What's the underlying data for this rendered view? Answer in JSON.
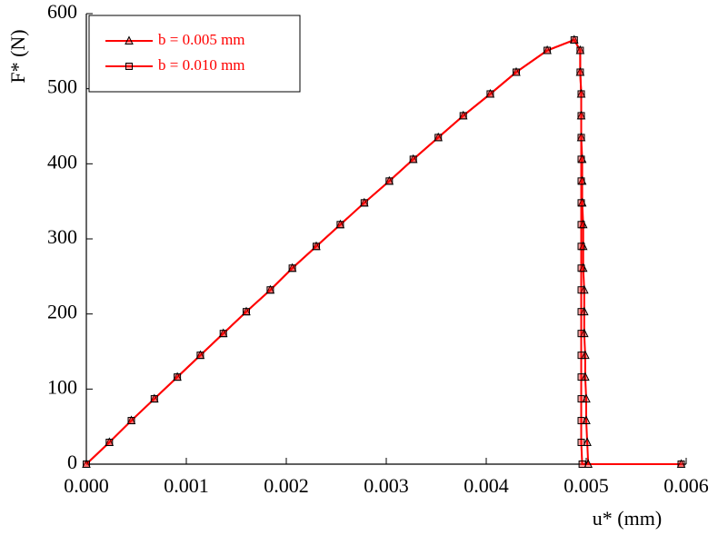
{
  "chart_data": {
    "type": "line",
    "xlabel": "u* (mm)",
    "ylabel": "F* (N)",
    "xlim": [
      0,
      0.006
    ],
    "ylim": [
      0,
      600
    ],
    "xticks": [
      {
        "value": 0,
        "label": "0.000"
      },
      0.001,
      0.002,
      0.003,
      0.004,
      0.005,
      0.006
    ],
    "yticks": [
      0,
      100,
      200,
      300,
      400,
      500,
      600
    ],
    "legend": "upper left",
    "series": [
      {
        "name": "b = 0.005 mm",
        "color": "#ff0000",
        "marker": "triangle",
        "x": [
          0,
          0.00023,
          0.00045,
          0.00068,
          0.00091,
          0.00114,
          0.00137,
          0.0016,
          0.00184,
          0.00206,
          0.0023,
          0.00254,
          0.00278,
          0.00303,
          0.00327,
          0.00352,
          0.00377,
          0.00404,
          0.0043,
          0.00461,
          0.00488,
          0.00494,
          0.00494,
          0.00495,
          0.00495,
          0.00495,
          0.00496,
          0.00496,
          0.00496,
          0.00497,
          0.00497,
          0.00497,
          0.00498,
          0.00498,
          0.00498,
          0.00499,
          0.00499,
          0.005,
          0.005,
          0.00501,
          0.00502,
          0.00595
        ],
        "values": [
          0,
          29,
          58,
          87,
          116,
          145,
          174,
          203,
          232,
          261,
          290,
          319,
          348,
          377,
          406,
          435,
          464,
          493,
          522,
          551,
          565,
          551,
          522,
          493,
          464,
          435,
          406,
          377,
          348,
          319,
          290,
          261,
          232,
          203,
          174,
          145,
          116,
          87,
          58,
          29,
          0,
          0
        ]
      },
      {
        "name": "b = 0.010 mm",
        "color": "#ff0000",
        "marker": "square",
        "x": [
          0,
          0.00023,
          0.00045,
          0.00068,
          0.00091,
          0.00114,
          0.00137,
          0.0016,
          0.00184,
          0.00206,
          0.0023,
          0.00254,
          0.00278,
          0.00303,
          0.00327,
          0.00352,
          0.00377,
          0.00404,
          0.0043,
          0.00461,
          0.00488,
          0.00494,
          0.00494,
          0.00495,
          0.00495,
          0.00495,
          0.00495,
          0.00495,
          0.00495,
          0.00495,
          0.00495,
          0.00495,
          0.00495,
          0.00495,
          0.00495,
          0.00495,
          0.00495,
          0.00495,
          0.00495,
          0.00495,
          0.00496,
          0.00595
        ],
        "values": [
          0,
          29,
          58,
          87,
          116,
          145,
          174,
          203,
          232,
          261,
          290,
          319,
          348,
          377,
          406,
          435,
          464,
          493,
          522,
          551,
          565,
          551,
          522,
          493,
          464,
          435,
          406,
          377,
          348,
          319,
          290,
          261,
          232,
          203,
          174,
          145,
          116,
          87,
          58,
          29,
          0,
          0
        ]
      }
    ]
  }
}
